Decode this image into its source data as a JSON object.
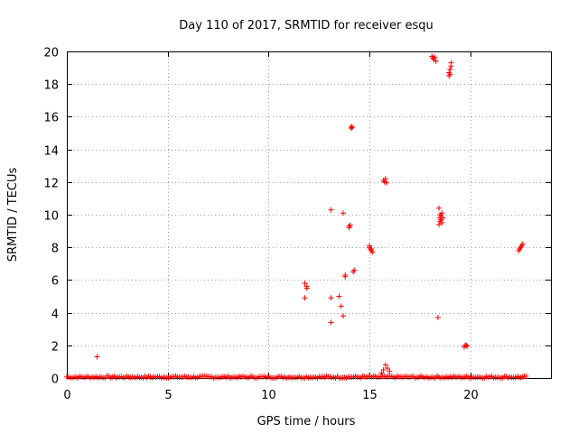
{
  "chart_data": {
    "type": "scatter",
    "title": "Day 110 of 2017, SRMTID for receiver esqu",
    "xlabel": "GPS time / hours",
    "ylabel": "SRMTID / TECUs",
    "xlim": [
      0,
      24
    ],
    "ylim": [
      0,
      20
    ],
    "xticks": [
      0,
      5,
      10,
      15,
      20
    ],
    "yticks": [
      0,
      2,
      4,
      6,
      8,
      10,
      12,
      14,
      16,
      18,
      20
    ],
    "grid": true,
    "marker": "+",
    "color": "#ff0000",
    "baseline": {
      "x_start": 0.0,
      "x_end": 22.8,
      "y_min": 0.0,
      "y_max": 0.12
    },
    "points": [
      [
        1.5,
        1.3
      ],
      [
        11.8,
        4.9
      ],
      [
        11.8,
        5.8
      ],
      [
        11.9,
        5.6
      ],
      [
        11.9,
        5.5
      ],
      [
        13.1,
        10.3
      ],
      [
        13.1,
        3.4
      ],
      [
        13.1,
        4.9
      ],
      [
        13.5,
        5.0
      ],
      [
        13.6,
        4.4
      ],
      [
        13.7,
        3.8
      ],
      [
        13.7,
        10.1
      ],
      [
        13.8,
        6.2
      ],
      [
        13.8,
        6.3
      ],
      [
        14.0,
        9.3
      ],
      [
        14.0,
        9.2
      ],
      [
        14.05,
        9.35
      ],
      [
        14.1,
        15.3
      ],
      [
        14.1,
        15.4
      ],
      [
        14.15,
        15.35
      ],
      [
        14.2,
        6.5
      ],
      [
        14.25,
        6.6
      ],
      [
        15.0,
        8.1
      ],
      [
        15.0,
        8.0
      ],
      [
        15.05,
        7.9
      ],
      [
        15.1,
        7.8
      ],
      [
        15.1,
        7.9
      ],
      [
        15.15,
        7.7
      ],
      [
        15.6,
        0.3
      ],
      [
        15.7,
        0.5
      ],
      [
        15.8,
        0.8
      ],
      [
        15.9,
        0.6
      ],
      [
        16.0,
        0.4
      ],
      [
        15.7,
        12.1
      ],
      [
        15.75,
        12.0
      ],
      [
        15.8,
        12.2
      ],
      [
        15.85,
        11.95
      ],
      [
        18.1,
        19.7
      ],
      [
        18.15,
        19.6
      ],
      [
        18.2,
        19.5
      ],
      [
        18.25,
        19.65
      ],
      [
        18.3,
        19.4
      ],
      [
        18.4,
        3.7
      ],
      [
        18.45,
        10.4
      ],
      [
        18.45,
        9.4
      ],
      [
        18.5,
        9.6
      ],
      [
        18.5,
        9.8
      ],
      [
        18.5,
        10.0
      ],
      [
        18.55,
        9.7
      ],
      [
        18.55,
        9.9
      ],
      [
        18.6,
        10.1
      ],
      [
        18.6,
        9.5
      ],
      [
        18.65,
        9.8
      ],
      [
        18.95,
        18.5
      ],
      [
        18.95,
        18.7
      ],
      [
        19.0,
        18.9
      ],
      [
        19.0,
        18.6
      ],
      [
        19.05,
        19.1
      ],
      [
        19.05,
        19.3
      ],
      [
        19.7,
        1.9
      ],
      [
        19.75,
        2.0
      ],
      [
        19.8,
        2.0
      ],
      [
        19.85,
        1.95
      ],
      [
        22.4,
        7.8
      ],
      [
        22.45,
        7.9
      ],
      [
        22.5,
        8.0
      ],
      [
        22.55,
        8.1
      ],
      [
        22.6,
        8.2
      ]
    ]
  }
}
